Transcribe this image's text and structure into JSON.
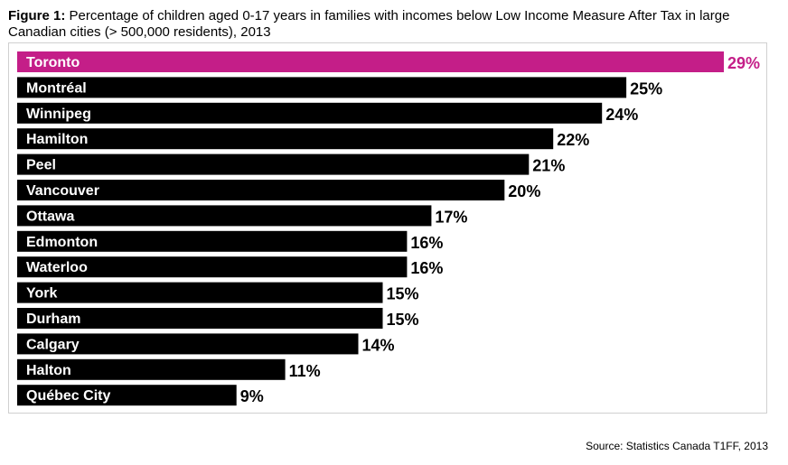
{
  "title_prefix": "Figure 1:",
  "title_text": "Percentage of children aged 0-17 years in families with incomes below Low Income Measure After Tax in large Canadian cities (> 500,000 residents), 2013",
  "source": "Source: Statistics Canada T1FF, 2013",
  "colors": {
    "highlight": "#c41e88",
    "default": "#000000"
  },
  "chart_data": {
    "type": "bar",
    "orientation": "horizontal",
    "title": "Percentage of children aged 0-17 years in families with incomes below Low Income Measure After Tax in large Canadian cities (> 500,000 residents), 2013",
    "xlabel": "",
    "ylabel": "",
    "categories": [
      "Toronto",
      "Montréal",
      "Winnipeg",
      "Hamilton",
      "Peel",
      "Vancouver",
      "Ottawa",
      "Edmonton",
      "Waterloo",
      "York",
      "Durham",
      "Calgary",
      "Halton",
      "Québec City"
    ],
    "values": [
      29,
      25,
      24,
      22,
      21,
      20,
      17,
      16,
      16,
      15,
      15,
      14,
      11,
      9
    ],
    "value_labels": [
      "29%",
      "25%",
      "24%",
      "22%",
      "21%",
      "20%",
      "17%",
      "16%",
      "16%",
      "15%",
      "15%",
      "14%",
      "11%",
      "9%"
    ],
    "highlight": [
      "Toronto"
    ],
    "xlim": [
      0,
      29
    ],
    "grid": false,
    "legend": "none"
  }
}
